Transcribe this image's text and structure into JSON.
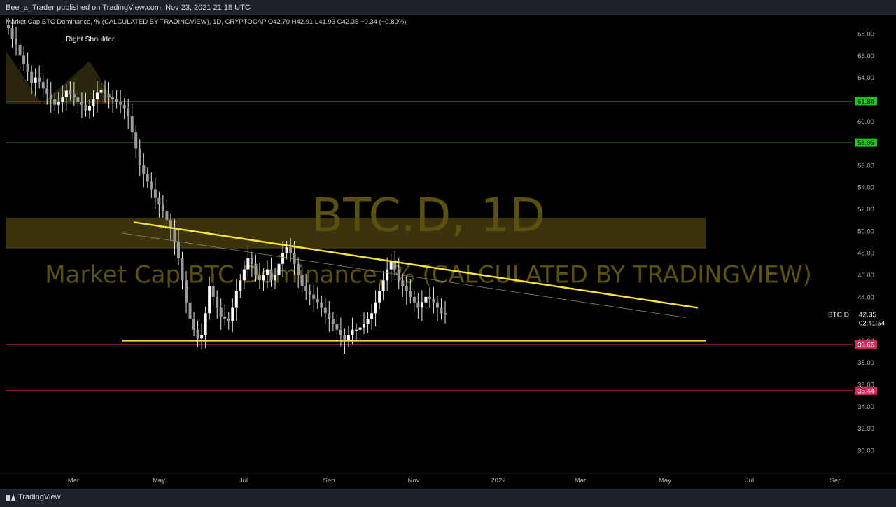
{
  "header": {
    "published_text": "Bee_a_Trader published on TradingView.com, Nov 23, 2021 21:18 UTC"
  },
  "legend": {
    "symbol_title": "Market Cap BTC Dominance, % (CALCULATED BY TRADINGVIEW), 1D, CRYPTOCAP",
    "open": "O42.70",
    "high": "H42.91",
    "low": "L41.93",
    "close": "C42.35",
    "change": "−0.34 (−0.80%)"
  },
  "watermark": {
    "line1": "BTC.D, 1D",
    "line2": "Market Cap BTC Dominance, % (CALCULATED BY TRADINGVIEW)"
  },
  "annotations": {
    "right_shoulder": "Right Shoulder"
  },
  "footer": {
    "brand": "TradingView"
  },
  "colors": {
    "background": "#000000",
    "trendline": "#f5e13c",
    "zone": "#4a4010",
    "support_green": "#1ec71e",
    "support_red": "#e0245e"
  },
  "chart_data": {
    "type": "candlestick",
    "symbol": "BTC.D",
    "x_ticks": [
      "Mar",
      "May",
      "Jul",
      "Sep",
      "Nov",
      "2022",
      "Mar",
      "May",
      "Jul",
      "Sep"
    ],
    "y_ticks": [
      "68.00",
      "66.00",
      "64.00",
      "62.00",
      "60.00",
      "58.00",
      "56.00",
      "54.00",
      "52.00",
      "50.00",
      "48.00",
      "46.00",
      "44.00",
      "42.00",
      "40.00",
      "38.00",
      "36.00",
      "34.00",
      "32.00",
      "30.00"
    ],
    "ylim": [
      28.5,
      69.5
    ],
    "price_labels": {
      "last_symbol": "BTC.D",
      "last_price": "42.35",
      "countdown": "02:41:54"
    },
    "horizontal_levels": [
      {
        "value": 61.84,
        "label": "61.84",
        "color": "green"
      },
      {
        "value": 58.06,
        "label": "58.06",
        "color": "green"
      },
      {
        "value": 39.65,
        "label": "39.65",
        "color": "red"
      },
      {
        "value": 35.44,
        "label": "35.44",
        "color": "red"
      }
    ],
    "close_series": [
      68.5,
      67.5,
      67,
      66,
      65.2,
      64.5,
      63.5,
      64,
      63.6,
      63,
      62.5,
      62,
      61.5,
      61.8,
      62.2,
      62.8,
      62.5,
      62.2,
      61.8,
      61.5,
      61,
      61.4,
      62,
      62.6,
      62.9,
      62.5,
      62.2,
      62,
      61.8,
      61.5,
      61.2,
      60.5,
      59,
      57.5,
      56,
      55.2,
      54.5,
      53.8,
      53,
      52.4,
      51.8,
      51,
      50.2,
      49,
      47.5,
      45.5,
      43.5,
      42,
      41,
      40.2,
      40.5,
      42.5,
      45,
      44,
      43,
      42.2,
      42,
      41.8,
      43,
      44.5,
      45.5,
      46.5,
      47.5,
      47,
      46,
      45.5,
      46,
      46.5,
      45.5,
      46,
      47,
      48,
      48.5,
      48,
      47,
      46,
      45,
      44.5,
      44.2,
      43.8,
      43.5,
      43,
      42.5,
      42,
      41.5,
      41,
      40.5,
      40,
      40.5,
      41,
      41,
      41.2,
      41.5,
      42,
      42.5,
      43.5,
      44.5,
      45.5,
      46.5,
      47.3,
      46.5,
      45.5,
      45,
      44.5,
      44,
      43.5,
      43,
      43.5,
      44,
      43.8,
      43.5,
      43,
      42.5,
      42.35
    ],
    "series_dates": {
      "start": "2021-01-08",
      "end": "2021-11-23"
    }
  }
}
